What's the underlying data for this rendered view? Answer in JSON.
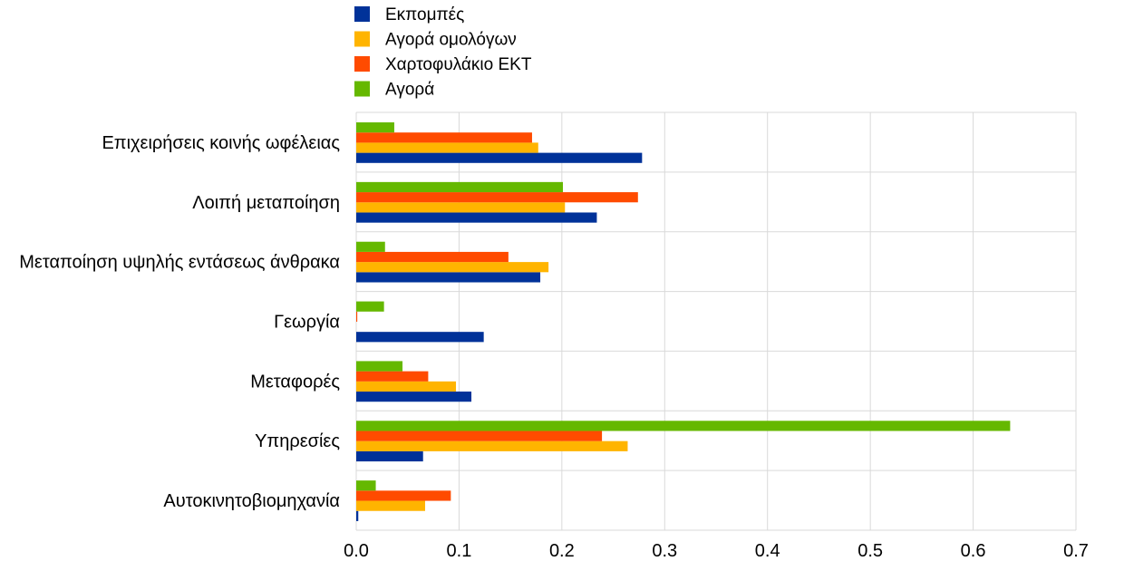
{
  "chart_data": {
    "type": "bar",
    "orientation": "horizontal",
    "categories": [
      "Επιχειρήσεις κοινής ωφέλειας",
      "Λοιπή μεταποίηση",
      "Μεταποίηση υψηλής εντάσεως άνθρακα",
      "Γεωργία",
      "Μεταφορές",
      "Υπηρεσίες",
      "Αυτοκινητοβιομηχανία"
    ],
    "series": [
      {
        "name": "Εκπομπές",
        "color": "#003299",
        "values": [
          0.278,
          0.234,
          0.179,
          0.124,
          0.112,
          0.065,
          0.002
        ]
      },
      {
        "name": "Αγορά ομολόγων",
        "color": "#FFB400",
        "values": [
          0.177,
          0.203,
          0.187,
          0.0,
          0.097,
          0.264,
          0.067
        ]
      },
      {
        "name": "Χαρτοφυλάκιο ΕΚΤ",
        "color": "#FF4B00",
        "values": [
          0.171,
          0.274,
          0.148,
          0.001,
          0.07,
          0.239,
          0.092
        ]
      },
      {
        "name": "Αγορά",
        "color": "#65B800",
        "values": [
          0.037,
          0.201,
          0.028,
          0.027,
          0.045,
          0.636,
          0.019
        ]
      }
    ],
    "xlim": [
      0,
      0.7
    ],
    "xticks": [
      "0.0",
      "0.1",
      "0.2",
      "0.3",
      "0.4",
      "0.5",
      "0.6",
      "0.7"
    ],
    "grid": true,
    "legend_position": "top-left"
  }
}
